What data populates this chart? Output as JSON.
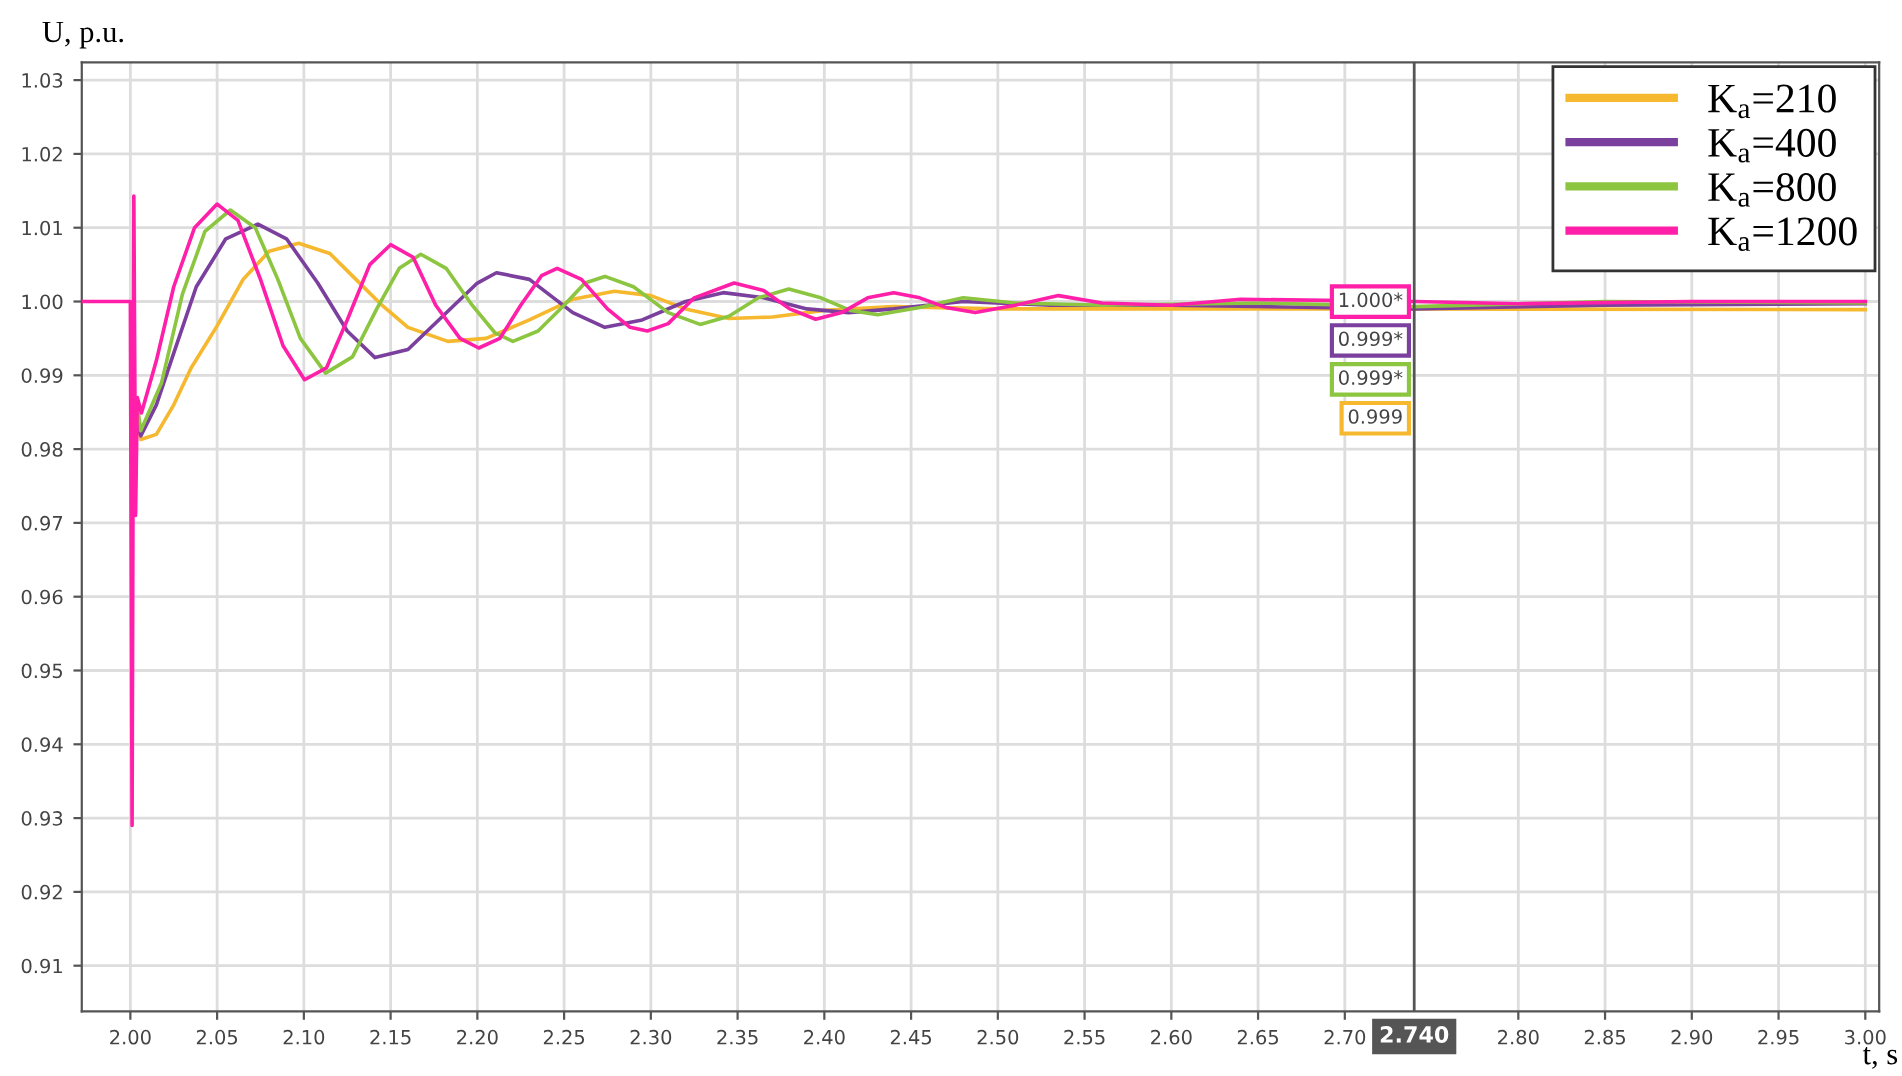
{
  "chart_data": {
    "type": "line",
    "xlabel": "t, s",
    "ylabel": "U, p.u.",
    "xlim": [
      1.972,
      3.008
    ],
    "ylim": [
      0.9038,
      1.0324
    ],
    "xticks": [
      {
        "value": 2.0,
        "label": "2.00"
      },
      {
        "value": 2.05,
        "label": "2.05"
      },
      {
        "value": 2.1,
        "label": "2.10"
      },
      {
        "value": 2.15,
        "label": "2.15"
      },
      {
        "value": 2.2,
        "label": "2.20"
      },
      {
        "value": 2.25,
        "label": "2.25"
      },
      {
        "value": 2.3,
        "label": "2.30"
      },
      {
        "value": 2.35,
        "label": "2.35"
      },
      {
        "value": 2.4,
        "label": "2.40"
      },
      {
        "value": 2.45,
        "label": "2.45"
      },
      {
        "value": 2.5,
        "label": "2.50"
      },
      {
        "value": 2.55,
        "label": "2.55"
      },
      {
        "value": 2.6,
        "label": "2.60"
      },
      {
        "value": 2.65,
        "label": "2.65"
      },
      {
        "value": 2.7,
        "label": "2.70"
      },
      {
        "value": 2.8,
        "label": "2.80"
      },
      {
        "value": 2.85,
        "label": "2.85"
      },
      {
        "value": 2.9,
        "label": "2.90"
      },
      {
        "value": 2.95,
        "label": "2.95"
      },
      {
        "value": 3.0,
        "label": "3.00"
      }
    ],
    "yticks": [
      0.91,
      0.92,
      0.93,
      0.94,
      0.95,
      0.96,
      0.97,
      0.98,
      0.99,
      {
        "value": 1.0,
        "label": "1.00"
      },
      1.01,
      1.02,
      1.03
    ],
    "grid": true,
    "legend": "top right",
    "marker": "none",
    "line_style": "solid",
    "ref_lines": [
      {
        "axis": "x",
        "value": 2.74,
        "label": "2.740",
        "color": "#555555"
      }
    ],
    "annotations": [
      "1.000*",
      "0.999*",
      "0.999*",
      "0.999"
    ],
    "series": [
      {
        "name": "K$_{a}$=210",
        "color": "#f5b82e",
        "x": [
          2.003,
          2.006,
          2.015,
          2.025,
          2.035,
          2.05,
          2.065,
          2.08,
          2.097,
          2.115,
          2.13,
          2.145,
          2.16,
          2.183,
          2.205,
          2.23,
          2.255,
          2.279,
          2.3,
          2.32,
          2.345,
          2.37,
          2.4,
          2.44,
          2.5,
          2.6,
          2.74,
          3.0
        ],
        "values": [
          0.985,
          0.9813,
          0.982,
          0.986,
          0.991,
          0.9967,
          1.003,
          1.0068,
          1.0079,
          1.0065,
          1.003,
          0.9995,
          0.9965,
          0.9946,
          0.995,
          0.9975,
          1.0003,
          1.0014,
          1.0008,
          0.999,
          0.9977,
          0.9979,
          0.9988,
          0.9993,
          0.999,
          0.999,
          0.999,
          0.9989
        ]
      },
      {
        "name": "K$_{a}$=400",
        "color": "#7b3f9e",
        "x": [
          2.003,
          2.006,
          2.015,
          2.025,
          2.038,
          2.055,
          2.0735,
          2.09,
          2.108,
          2.125,
          2.141,
          2.16,
          2.18,
          2.2,
          2.211,
          2.23,
          2.255,
          2.2735,
          2.295,
          2.32,
          2.3417,
          2.365,
          2.39,
          2.414,
          2.44,
          2.48,
          2.53,
          2.6,
          2.74,
          2.85,
          3.0
        ],
        "values": [
          0.984,
          0.9818,
          0.986,
          0.993,
          1.002,
          1.0085,
          1.0105,
          1.0085,
          1.0025,
          0.996,
          0.9924,
          0.9935,
          0.998,
          1.0025,
          1.0039,
          1.003,
          0.9985,
          0.9965,
          0.9975,
          1.0,
          1.0012,
          1.0005,
          0.999,
          0.9985,
          0.999,
          1.0,
          0.9995,
          0.9995,
          0.999,
          0.9995,
          0.9997
        ]
      },
      {
        "name": "K$_{a}$=800",
        "color": "#8cc540",
        "x": [
          2.004,
          2.006,
          2.018,
          2.03,
          2.043,
          2.0576,
          2.072,
          2.085,
          2.098,
          2.1125,
          2.128,
          2.142,
          2.155,
          2.1674,
          2.182,
          2.197,
          2.21,
          2.2205,
          2.235,
          2.25,
          2.262,
          2.2735,
          2.29,
          2.31,
          2.3284,
          2.345,
          2.362,
          2.3795,
          2.398,
          2.415,
          2.4307,
          2.455,
          2.48,
          2.51,
          2.56,
          2.65,
          2.74,
          2.85,
          3.0
        ],
        "values": [
          0.986,
          0.9825,
          0.989,
          1.001,
          1.0095,
          1.0124,
          1.01,
          1.003,
          0.995,
          0.9903,
          0.9925,
          0.999,
          1.0045,
          1.0064,
          1.0045,
          0.9995,
          0.9958,
          0.9946,
          0.996,
          0.9995,
          1.0025,
          1.0034,
          1.002,
          0.9985,
          0.9969,
          0.998,
          1.0005,
          1.0017,
          1.0005,
          0.9988,
          0.9982,
          0.9992,
          1.0005,
          0.9998,
          0.9995,
          0.9998,
          0.9993,
          1.0,
          0.9998
        ]
      },
      {
        "name": "K$_{a}$=1200",
        "color": "#ff1fa8",
        "x": [
          1.972,
          2.0,
          2.001,
          2.002,
          2.003,
          2.004,
          2.0064,
          2.015,
          2.025,
          2.037,
          2.05,
          2.062,
          2.075,
          2.088,
          2.1004,
          2.113,
          2.125,
          2.138,
          2.15,
          2.163,
          2.176,
          2.19,
          2.2008,
          2.213,
          2.225,
          2.237,
          2.246,
          2.26,
          2.275,
          2.288,
          2.298,
          2.31,
          2.325,
          2.348,
          2.365,
          2.38,
          2.395,
          2.41,
          2.425,
          2.44,
          2.455,
          2.47,
          2.487,
          2.51,
          2.535,
          2.56,
          2.6,
          2.64,
          2.74,
          2.8,
          2.9,
          3.0
        ],
        "values": [
          1.0,
          1.0,
          0.929,
          1.0143,
          0.971,
          0.987,
          0.9849,
          0.992,
          1.002,
          1.01,
          1.0132,
          1.011,
          1.003,
          0.994,
          0.9894,
          0.991,
          0.9975,
          1.005,
          1.0077,
          1.006,
          0.9995,
          0.995,
          0.9937,
          0.995,
          0.9995,
          1.0035,
          1.0045,
          1.003,
          0.999,
          0.9965,
          0.996,
          0.997,
          1.0005,
          1.0025,
          1.0015,
          0.999,
          0.9976,
          0.9985,
          1.0005,
          1.0012,
          1.0005,
          0.9992,
          0.9985,
          0.9995,
          1.0008,
          0.9998,
          0.9995,
          1.0003,
          1.0,
          0.9997,
          1.0,
          1.0
        ]
      }
    ]
  }
}
